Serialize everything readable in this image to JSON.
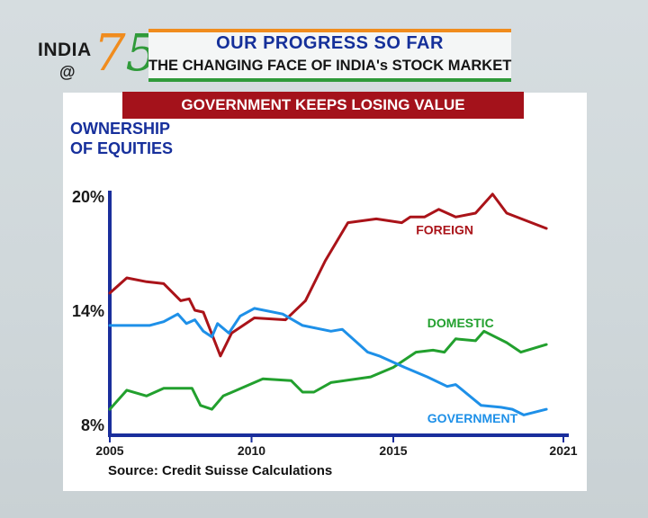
{
  "logo": {
    "line1": "INDIA",
    "line2": "@",
    "digit1": "7",
    "digit2": "5"
  },
  "header": {
    "title": "OUR PROGRESS SO FAR",
    "subtitle": "THE CHANGING FACE OF INDIA's STOCK MARKET"
  },
  "banner": "GOVERNMENT KEEPS LOSING VALUE",
  "y_title": [
    "OWNERSHIP",
    "OF EQUITIES"
  ],
  "source": "Source: Credit Suisse Calculations",
  "colors": {
    "foreign": "#aa1319",
    "domestic": "#22a02e",
    "government": "#1e90e8",
    "axis": "#1a2e9c",
    "banner": "#a4121b"
  },
  "chart_data": {
    "type": "line",
    "title": "Ownership of Equities",
    "ylabel": "Ownership of equities (%)",
    "xlim": [
      2005,
      2021
    ],
    "ylim": [
      8,
      20
    ],
    "x_ticks": [
      "2005",
      "2010",
      "2015",
      "2021"
    ],
    "y_ticks": [
      "8%",
      "14%",
      "20%"
    ],
    "series": [
      {
        "name": "FOREIGN",
        "points": [
          [
            2005,
            14.9
          ],
          [
            2005.6,
            15.7
          ],
          [
            2006.3,
            15.5
          ],
          [
            2006.9,
            15.4
          ],
          [
            2007.5,
            14.5
          ],
          [
            2007.8,
            14.6
          ],
          [
            2008.0,
            14.0
          ],
          [
            2008.3,
            13.9
          ],
          [
            2008.9,
            11.6
          ],
          [
            2009.3,
            12.8
          ],
          [
            2010.1,
            13.6
          ],
          [
            2011.2,
            13.5
          ],
          [
            2011.9,
            14.5
          ],
          [
            2012.6,
            16.6
          ],
          [
            2013.4,
            18.6
          ],
          [
            2014.4,
            18.8
          ],
          [
            2015.3,
            18.6
          ],
          [
            2015.6,
            18.9
          ],
          [
            2016.1,
            18.9
          ],
          [
            2016.6,
            19.3
          ],
          [
            2017.2,
            18.9
          ],
          [
            2017.9,
            19.1
          ],
          [
            2018.5,
            20.1
          ],
          [
            2019.0,
            19.1
          ],
          [
            2020.4,
            18.3
          ]
        ]
      },
      {
        "name": "DOMESTIC",
        "points": [
          [
            2005,
            8.8
          ],
          [
            2005.6,
            9.8
          ],
          [
            2006.3,
            9.5
          ],
          [
            2006.9,
            9.9
          ],
          [
            2007.9,
            9.9
          ],
          [
            2008.2,
            9.0
          ],
          [
            2008.6,
            8.8
          ],
          [
            2009.0,
            9.5
          ],
          [
            2010.4,
            10.4
          ],
          [
            2011.4,
            10.3
          ],
          [
            2011.8,
            9.7
          ],
          [
            2012.2,
            9.7
          ],
          [
            2012.8,
            10.2
          ],
          [
            2014.2,
            10.5
          ],
          [
            2015.0,
            11.0
          ],
          [
            2015.8,
            11.8
          ],
          [
            2016.4,
            11.9
          ],
          [
            2016.8,
            11.8
          ],
          [
            2017.2,
            12.5
          ],
          [
            2017.9,
            12.4
          ],
          [
            2018.2,
            12.9
          ],
          [
            2019.0,
            12.3
          ],
          [
            2019.5,
            11.8
          ],
          [
            2020.4,
            12.2
          ]
        ]
      },
      {
        "name": "GOVERNMENT",
        "points": [
          [
            2005,
            13.2
          ],
          [
            2006.4,
            13.2
          ],
          [
            2006.9,
            13.4
          ],
          [
            2007.4,
            13.8
          ],
          [
            2007.7,
            13.3
          ],
          [
            2008.0,
            13.5
          ],
          [
            2008.3,
            12.9
          ],
          [
            2008.6,
            12.6
          ],
          [
            2008.8,
            13.3
          ],
          [
            2009.2,
            12.8
          ],
          [
            2009.6,
            13.7
          ],
          [
            2010.1,
            14.1
          ],
          [
            2011.1,
            13.8
          ],
          [
            2011.8,
            13.2
          ],
          [
            2012.8,
            12.9
          ],
          [
            2013.2,
            13.0
          ],
          [
            2014.1,
            11.8
          ],
          [
            2014.5,
            11.6
          ],
          [
            2015.4,
            11.0
          ],
          [
            2016.2,
            10.5
          ],
          [
            2016.9,
            10.0
          ],
          [
            2017.2,
            10.1
          ],
          [
            2018.1,
            9.0
          ],
          [
            2018.8,
            8.9
          ],
          [
            2019.2,
            8.8
          ],
          [
            2019.6,
            8.5
          ],
          [
            2020.4,
            8.8
          ]
        ]
      }
    ]
  }
}
